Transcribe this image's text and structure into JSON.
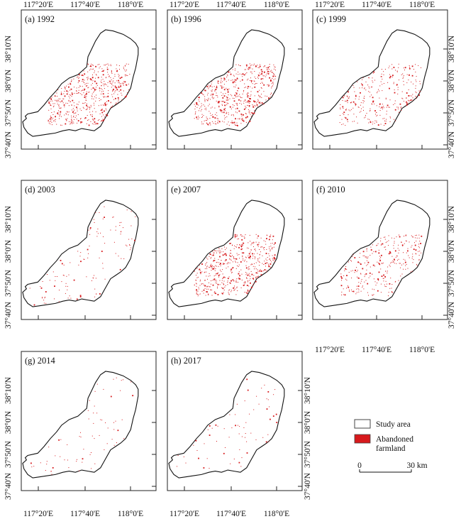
{
  "figure": {
    "panels": [
      {
        "id": "a",
        "label": "(a) 1992",
        "year": 1992,
        "density": "high"
      },
      {
        "id": "b",
        "label": "(b) 1996",
        "year": 1996,
        "density": "high"
      },
      {
        "id": "c",
        "label": "(c) 1999",
        "year": 1999,
        "density": "medium"
      },
      {
        "id": "d",
        "label": "(d) 2003",
        "year": 2003,
        "density": "low"
      },
      {
        "id": "e",
        "label": "(e) 2007",
        "year": 2007,
        "density": "high"
      },
      {
        "id": "f",
        "label": "(f) 2010",
        "year": 2010,
        "density": "medium"
      },
      {
        "id": "g",
        "label": "(g) 2014",
        "year": 2014,
        "density": "very-low"
      },
      {
        "id": "h",
        "label": "(h) 2017",
        "year": 2017,
        "density": "very-low"
      }
    ],
    "x_ticks": [
      "117°20'E",
      "117°40'E",
      "118°0'E"
    ],
    "y_ticks": [
      "38°10'N",
      "38°0'N",
      "37°50'N",
      "37°40'N"
    ],
    "legend": {
      "study_area": "Study area",
      "abandoned_line1": "Abandoned",
      "abandoned_line2": "farmland",
      "abandoned_color": "#d7191c",
      "scale_start": "0",
      "scale_end": "30 km"
    }
  }
}
